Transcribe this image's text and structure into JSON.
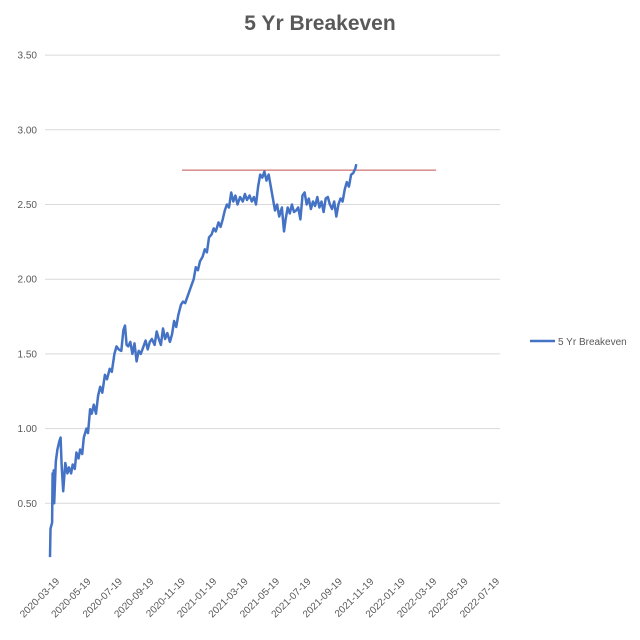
{
  "chart_data": {
    "type": "line",
    "title": "5 Yr Breakeven",
    "xlabel": "",
    "ylabel": "",
    "ylim": [
      0.0,
      3.5
    ],
    "y_ticks": [
      "3.50",
      "3.00",
      "2.50",
      "2.00",
      "1.50",
      "1.00",
      "0.50"
    ],
    "y_tick_values": [
      3.5,
      3.0,
      2.5,
      2.0,
      1.5,
      1.0,
      0.5
    ],
    "x_ticks": [
      "2020-03-19",
      "2020-05-19",
      "2020-07-19",
      "2020-09-19",
      "2020-11-19",
      "2021-01-19",
      "2021-03-19",
      "2021-05-19",
      "2021-07-19",
      "2021-09-19",
      "2021-11-19",
      "2022-01-19",
      "2022-03-19",
      "2022-05-19",
      "2022-07-19"
    ],
    "xlim": [
      "2020-03-19",
      "2022-07-19"
    ],
    "grid": true,
    "legend_position": "right",
    "series": [
      {
        "name": "5 Yr Breakeven",
        "color": "#4472C4",
        "points": [
          [
            "2020-03-19",
            0.14
          ],
          [
            "2020-03-20",
            0.33
          ],
          [
            "2020-03-23",
            0.37
          ],
          [
            "2020-03-24",
            0.7
          ],
          [
            "2020-03-25",
            0.52
          ],
          [
            "2020-03-26",
            0.72
          ],
          [
            "2020-03-27",
            0.5
          ],
          [
            "2020-03-30",
            0.78
          ],
          [
            "2020-04-02",
            0.86
          ],
          [
            "2020-04-06",
            0.92
          ],
          [
            "2020-04-08",
            0.94
          ],
          [
            "2020-04-10",
            0.76
          ],
          [
            "2020-04-13",
            0.58
          ],
          [
            "2020-04-15",
            0.68
          ],
          [
            "2020-04-17",
            0.77
          ],
          [
            "2020-04-21",
            0.7
          ],
          [
            "2020-04-24",
            0.74
          ],
          [
            "2020-04-28",
            0.7
          ],
          [
            "2020-05-01",
            0.76
          ],
          [
            "2020-05-05",
            0.73
          ],
          [
            "2020-05-08",
            0.84
          ],
          [
            "2020-05-12",
            0.8
          ],
          [
            "2020-05-15",
            0.86
          ],
          [
            "2020-05-19",
            0.83
          ],
          [
            "2020-05-22",
            0.94
          ],
          [
            "2020-05-27",
            1.0
          ],
          [
            "2020-05-30",
            0.97
          ],
          [
            "2020-06-03",
            1.13
          ],
          [
            "2020-06-06",
            1.1
          ],
          [
            "2020-06-10",
            1.16
          ],
          [
            "2020-06-14",
            1.1
          ],
          [
            "2020-06-18",
            1.22
          ],
          [
            "2020-06-22",
            1.28
          ],
          [
            "2020-06-26",
            1.24
          ],
          [
            "2020-07-01",
            1.36
          ],
          [
            "2020-07-05",
            1.33
          ],
          [
            "2020-07-10",
            1.4
          ],
          [
            "2020-07-14",
            1.38
          ],
          [
            "2020-07-19",
            1.5
          ],
          [
            "2020-07-23",
            1.55
          ],
          [
            "2020-07-27",
            1.53
          ],
          [
            "2020-08-01",
            1.52
          ],
          [
            "2020-08-05",
            1.66
          ],
          [
            "2020-08-08",
            1.69
          ],
          [
            "2020-08-11",
            1.56
          ],
          [
            "2020-08-14",
            1.55
          ],
          [
            "2020-08-18",
            1.58
          ],
          [
            "2020-08-22",
            1.5
          ],
          [
            "2020-08-26",
            1.57
          ],
          [
            "2020-08-30",
            1.45
          ],
          [
            "2020-09-03",
            1.52
          ],
          [
            "2020-09-07",
            1.5
          ],
          [
            "2020-09-12",
            1.55
          ],
          [
            "2020-09-16",
            1.59
          ],
          [
            "2020-09-20",
            1.53
          ],
          [
            "2020-09-24",
            1.58
          ],
          [
            "2020-09-28",
            1.6
          ],
          [
            "2020-10-03",
            1.56
          ],
          [
            "2020-10-07",
            1.65
          ],
          [
            "2020-10-11",
            1.6
          ],
          [
            "2020-10-15",
            1.56
          ],
          [
            "2020-10-19",
            1.67
          ],
          [
            "2020-10-23",
            1.6
          ],
          [
            "2020-10-27",
            1.64
          ],
          [
            "2020-11-01",
            1.58
          ],
          [
            "2020-11-05",
            1.63
          ],
          [
            "2020-11-09",
            1.72
          ],
          [
            "2020-11-13",
            1.68
          ],
          [
            "2020-11-17",
            1.76
          ],
          [
            "2020-11-22",
            1.83
          ],
          [
            "2020-11-26",
            1.85
          ],
          [
            "2020-11-30",
            1.84
          ],
          [
            "2020-12-04",
            1.88
          ],
          [
            "2020-12-08",
            1.92
          ],
          [
            "2020-12-12",
            1.96
          ],
          [
            "2020-12-16",
            2.0
          ],
          [
            "2020-12-20",
            2.08
          ],
          [
            "2020-12-24",
            2.06
          ],
          [
            "2020-12-28",
            2.12
          ],
          [
            "2021-01-02",
            2.15
          ],
          [
            "2021-01-06",
            2.2
          ],
          [
            "2021-01-10",
            2.18
          ],
          [
            "2021-01-14",
            2.28
          ],
          [
            "2021-01-19",
            2.3
          ],
          [
            "2021-01-23",
            2.34
          ],
          [
            "2021-01-27",
            2.32
          ],
          [
            "2021-02-01",
            2.38
          ],
          [
            "2021-02-05",
            2.35
          ],
          [
            "2021-02-09",
            2.4
          ],
          [
            "2021-02-13",
            2.46
          ],
          [
            "2021-02-17",
            2.5
          ],
          [
            "2021-02-21",
            2.48
          ],
          [
            "2021-02-25",
            2.58
          ],
          [
            "2021-03-01",
            2.52
          ],
          [
            "2021-03-05",
            2.56
          ],
          [
            "2021-03-09",
            2.5
          ],
          [
            "2021-03-14",
            2.55
          ],
          [
            "2021-03-19",
            2.52
          ],
          [
            "2021-03-23",
            2.57
          ],
          [
            "2021-03-27",
            2.53
          ],
          [
            "2021-04-01",
            2.56
          ],
          [
            "2021-04-05",
            2.52
          ],
          [
            "2021-04-09",
            2.55
          ],
          [
            "2021-04-13",
            2.5
          ],
          [
            "2021-04-17",
            2.62
          ],
          [
            "2021-04-21",
            2.7
          ],
          [
            "2021-04-25",
            2.68
          ],
          [
            "2021-04-29",
            2.72
          ],
          [
            "2021-05-03",
            2.66
          ],
          [
            "2021-05-07",
            2.7
          ],
          [
            "2021-05-11",
            2.62
          ],
          [
            "2021-05-15",
            2.54
          ],
          [
            "2021-05-19",
            2.46
          ],
          [
            "2021-05-23",
            2.5
          ],
          [
            "2021-05-27",
            2.42
          ],
          [
            "2021-06-01",
            2.48
          ],
          [
            "2021-06-05",
            2.32
          ],
          [
            "2021-06-08",
            2.4
          ],
          [
            "2021-06-12",
            2.48
          ],
          [
            "2021-06-16",
            2.44
          ],
          [
            "2021-06-20",
            2.5
          ],
          [
            "2021-06-24",
            2.45
          ],
          [
            "2021-06-28",
            2.46
          ],
          [
            "2021-07-02",
            2.48
          ],
          [
            "2021-07-06",
            2.4
          ],
          [
            "2021-07-10",
            2.56
          ],
          [
            "2021-07-14",
            2.58
          ],
          [
            "2021-07-18",
            2.5
          ],
          [
            "2021-07-22",
            2.54
          ],
          [
            "2021-07-26",
            2.47
          ],
          [
            "2021-07-30",
            2.52
          ],
          [
            "2021-08-03",
            2.49
          ],
          [
            "2021-08-07",
            2.55
          ],
          [
            "2021-08-11",
            2.48
          ],
          [
            "2021-08-15",
            2.52
          ],
          [
            "2021-08-19",
            2.45
          ],
          [
            "2021-08-23",
            2.54
          ],
          [
            "2021-08-27",
            2.55
          ],
          [
            "2021-08-31",
            2.5
          ],
          [
            "2021-09-04",
            2.47
          ],
          [
            "2021-09-08",
            2.52
          ],
          [
            "2021-09-12",
            2.42
          ],
          [
            "2021-09-16",
            2.5
          ],
          [
            "2021-09-20",
            2.54
          ],
          [
            "2021-09-24",
            2.52
          ],
          [
            "2021-09-28",
            2.6
          ],
          [
            "2021-10-02",
            2.65
          ],
          [
            "2021-10-06",
            2.62
          ],
          [
            "2021-10-10",
            2.7
          ],
          [
            "2021-10-14",
            2.71
          ],
          [
            "2021-10-18",
            2.74
          ],
          [
            "2021-10-20",
            2.77
          ]
        ]
      }
    ],
    "reference_line": {
      "value": 2.73,
      "x_start": "2020-11-24",
      "x_end": "2022-03-20",
      "color": "#C0504D"
    }
  }
}
